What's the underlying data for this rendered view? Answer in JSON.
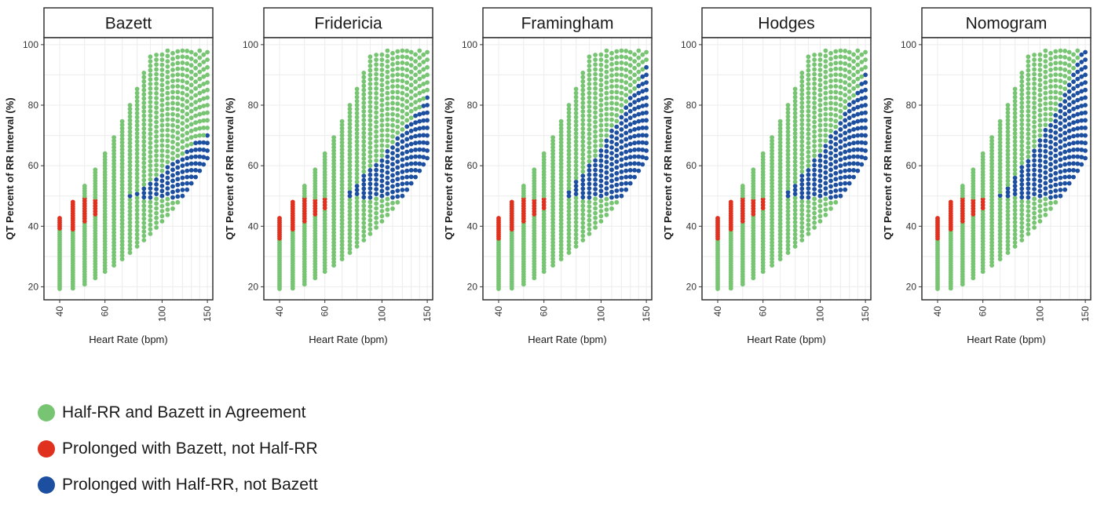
{
  "chart_data": {
    "type": "scatter",
    "panels": [
      {
        "title": "Bazett",
        "red_hr_max": 58,
        "blue_hr_min": 62,
        "blue_curve": "bazett"
      },
      {
        "title": "Fridericia",
        "red_hr_max": 60,
        "blue_hr_min": 62,
        "blue_curve": "fridericia"
      },
      {
        "title": "Framingham",
        "red_hr_max": 60,
        "blue_hr_min": 62,
        "blue_curve": "framingham"
      },
      {
        "title": "Hodges",
        "red_hr_max": 60,
        "blue_hr_min": 62,
        "blue_curve": "hodges"
      },
      {
        "title": "Nomogram",
        "red_hr_max": 60,
        "blue_hr_min": 62,
        "blue_curve": "nomogram"
      }
    ],
    "xlabel": "Heart Rate (bpm)",
    "ylabel": "QT Percent of RR Interval (%)",
    "x_ticks": [
      "40",
      "60",
      "100",
      "150"
    ],
    "y_ticks": [
      "20",
      "40",
      "60",
      "80",
      "100"
    ],
    "xlim": [
      36,
      152
    ],
    "ylim": [
      17,
      101
    ],
    "x_scale": "log",
    "grid": true,
    "colors": {
      "agree": "#77c573",
      "red": "#e0301e",
      "blue": "#1c4fa0"
    },
    "legend": {
      "placement": "bottom",
      "items": [
        {
          "label": "Half-RR and Bazett in Agreement",
          "color": "#77c573"
        },
        {
          "label": "Prolonged with Bazett, not Half-RR",
          "color": "#e0301e"
        },
        {
          "label": "Prolonged with Half-RR, not Bazett",
          "color": "#1c4fa0"
        }
      ]
    }
  }
}
